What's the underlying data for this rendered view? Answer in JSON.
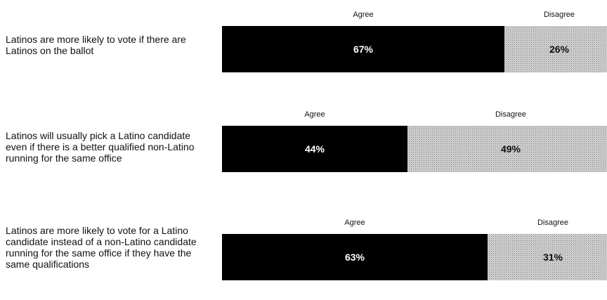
{
  "chart_data": {
    "type": "bar",
    "orientation": "horizontal",
    "stacked": true,
    "categories": [
      "Latinos are more likely to vote if there are Latinos on the ballot",
      "Latinos will usually pick a Latino candidate even if there is a better qualified non-Latino running for the same office",
      "Latinos are more likely to vote for a Latino candidate instead of a non-Latino candidate running for the same office if they have the same qualifications"
    ],
    "series": [
      {
        "name": "Agree",
        "values": [
          67,
          44,
          63
        ],
        "labels": [
          "67%",
          "44%",
          "63%"
        ],
        "color": "#000000"
      },
      {
        "name": "Disagree",
        "values": [
          26,
          49,
          31
        ],
        "labels": [
          "26%",
          "49%",
          "31%"
        ],
        "color": "#c8c8c8",
        "pattern": "dotted"
      }
    ],
    "xlim": [
      0,
      100
    ],
    "grid": false,
    "legend": "segment headers above each bar"
  }
}
